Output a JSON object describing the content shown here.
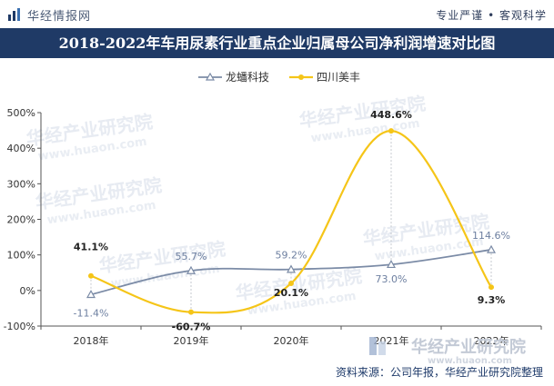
{
  "header": {
    "brand_name": "华经情报网",
    "slogan": "专业严谨 • 客观科学"
  },
  "title": "2018-2022年车用尿素行业重点企业归属母公司净利润增速对比图",
  "source": "资料来源：公司年报，华经产业研究院整理",
  "watermark": {
    "text": "华经产业研究院",
    "url": "www.huaon.com"
  },
  "colors": {
    "title_bg": "#1f3a66",
    "series_1": "#7b8ba6",
    "series_2": "#f5c518"
  },
  "chart_data": {
    "type": "line",
    "smooth": true,
    "categories": [
      "2018年",
      "2019年",
      "2020年",
      "2021年",
      "2022年"
    ],
    "series": [
      {
        "name": "龙蟠科技",
        "values": [
          -11.4,
          55.7,
          59.2,
          73.0,
          114.6
        ],
        "labels": [
          "-11.4%",
          "55.7%",
          "59.2%",
          "73.0%",
          "114.6%"
        ],
        "marker": "triangle"
      },
      {
        "name": "四川美丰",
        "values": [
          41.1,
          -60.7,
          20.1,
          448.6,
          9.3
        ],
        "labels": [
          "41.1%",
          "-60.7%",
          "20.1%",
          "448.6%",
          "9.3%"
        ],
        "marker": "circle"
      }
    ],
    "ylim": [
      -100,
      500
    ],
    "yticks": [
      -100,
      0,
      100,
      200,
      300,
      400,
      500
    ],
    "ytick_labels": [
      "-100%",
      "0%",
      "100%",
      "200%",
      "300%",
      "400%",
      "500%"
    ],
    "legend_position": "top-center",
    "grid": false
  }
}
